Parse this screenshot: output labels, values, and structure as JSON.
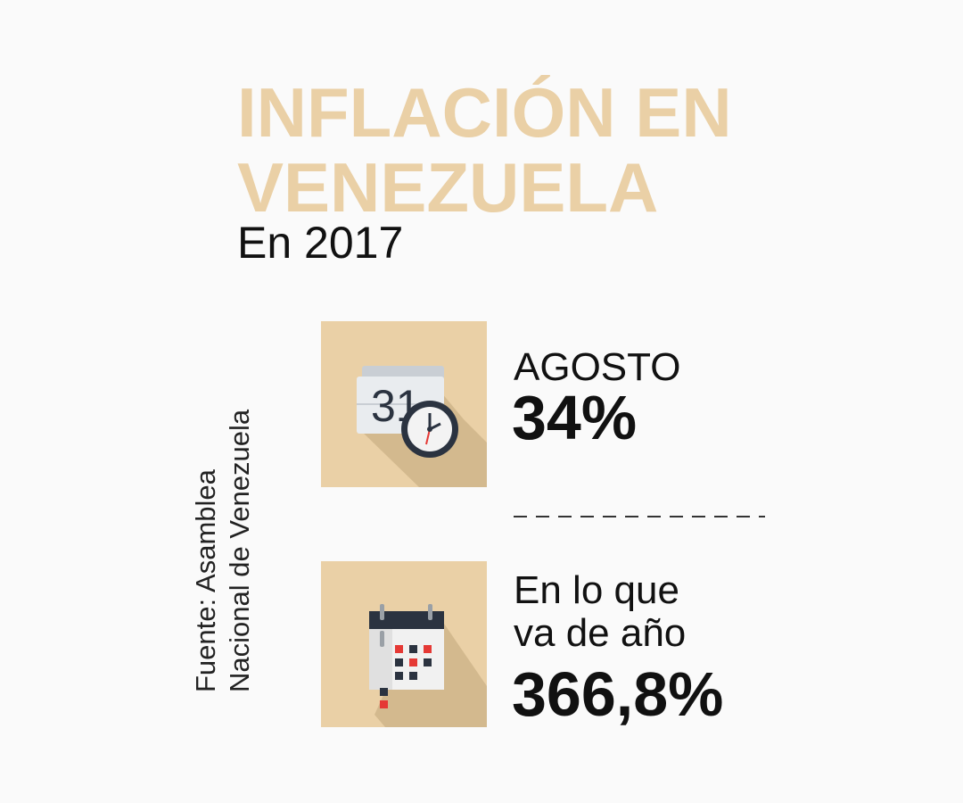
{
  "title": {
    "line1": "INFLACIÓN EN",
    "line2": "VENEZUELA"
  },
  "subtitle": "En 2017",
  "source": {
    "line1": "Fuente: Asamblea",
    "line2": "Nacional de Venezuela"
  },
  "stats": [
    {
      "label": "AGOSTO",
      "value": "34%",
      "icon": "calendar-clock-icon",
      "calendar_day": "31"
    },
    {
      "label_line1": "En lo que",
      "label_line2": "va de año",
      "value": "366,8%",
      "icon": "calendar-grid-icon"
    }
  ],
  "colors": {
    "accent": "#ead0a6",
    "shadow": "#d3b98e",
    "text": "#111111",
    "background": "#fafafa",
    "icon_dark": "#2b3340",
    "icon_red": "#e53935"
  }
}
